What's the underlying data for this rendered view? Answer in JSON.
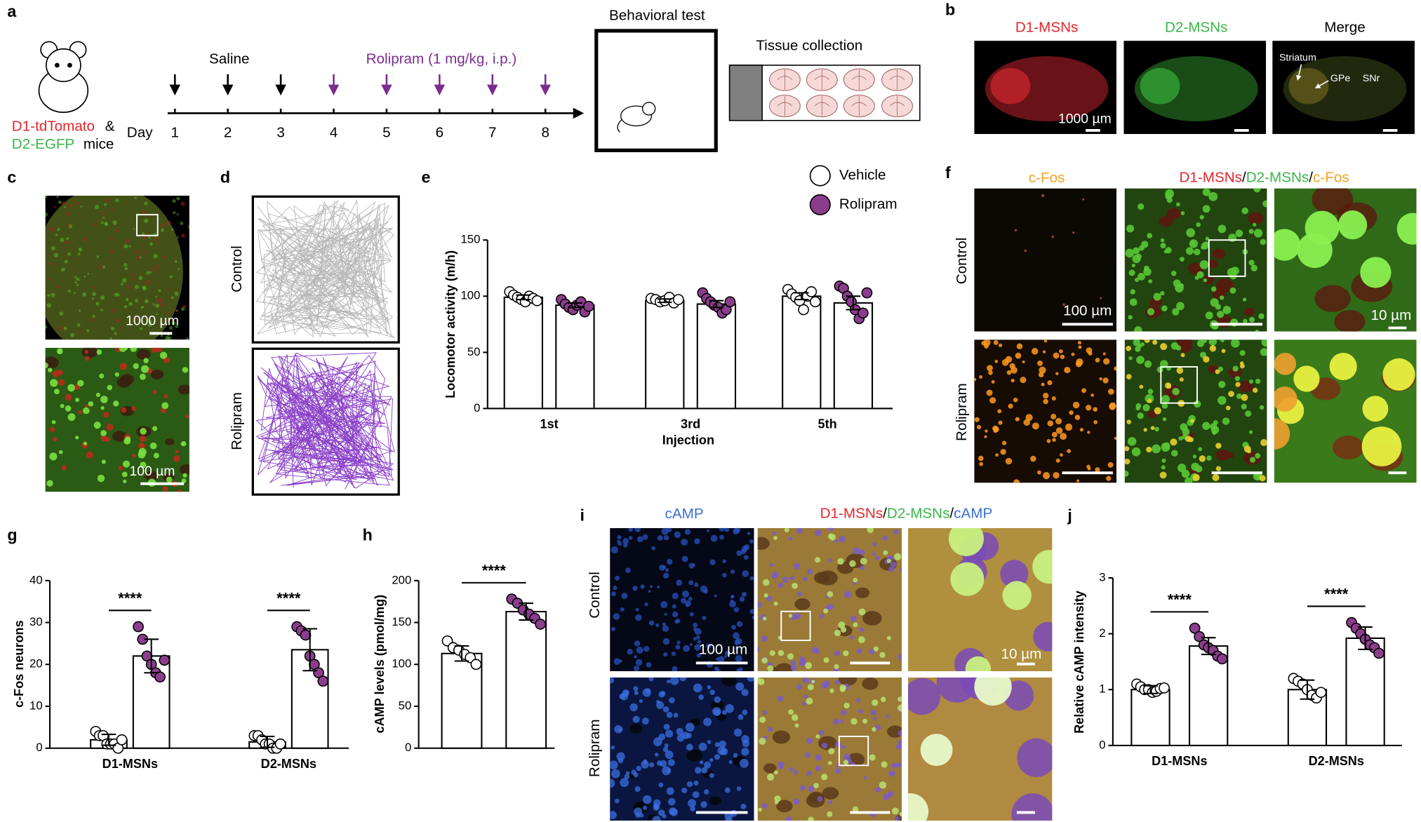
{
  "figure": {
    "panel_labels": [
      "a",
      "b",
      "c",
      "d",
      "e",
      "f",
      "g",
      "h",
      "i",
      "j"
    ],
    "a": {
      "strain_1": "D1-tdTomato",
      "amp": "&",
      "strain_2": "D2-EGFP",
      "mice": "mice",
      "day_label": "Day",
      "days": [
        1,
        2,
        3,
        4,
        5,
        6,
        7,
        8
      ],
      "saline": "Saline",
      "rolipram": "Rolipram (1 mg/kg, i.p.)",
      "behavioral_test": "Behavioral test",
      "tissue_collection": "Tissue collection"
    },
    "b": {
      "titles": [
        "D1-MSNs",
        "D2-MSNs",
        "Merge"
      ],
      "scale": "1000 µm",
      "regions": [
        "Striatum",
        "GPe",
        "SNr"
      ]
    },
    "c": {
      "scale_top": "1000 µm",
      "scale_bottom": "100 µm"
    },
    "d": {
      "rows": [
        "Control",
        "Rolipram"
      ]
    },
    "f": {
      "title_1": "c-Fos",
      "title_2": [
        "D1-MSNs",
        "/",
        "D2-MSNs",
        "/",
        "c-Fos"
      ],
      "rows": [
        "Control",
        "Rolipram"
      ],
      "scale_1": "100 µm",
      "scale_2": "10 µm"
    },
    "i": {
      "title_1": "cAMP",
      "title_2": [
        "D1-MSNs",
        "/",
        "D2-MSNs",
        "/",
        "cAMP"
      ],
      "rows": [
        "Control",
        "Rolipram"
      ],
      "scale_1": "100 µm",
      "scale_2": "10 µm"
    }
  },
  "chart_data": [
    {
      "type": "bar",
      "ylabel": "Locomotor activity (m/h)",
      "xlabel": "Injection",
      "categories": [
        "1st",
        "3rd",
        "5th"
      ],
      "ylim": [
        0,
        150
      ],
      "yticks": [
        0,
        50,
        100,
        150
      ],
      "legend": "upper right",
      "bar_color": "#ffffff",
      "series": [
        {
          "name": "Vehicle",
          "color": "#ffffff",
          "values": [
            99,
            96,
            100
          ],
          "errors": [
            2,
            1.5,
            3
          ],
          "points": [
            [
              104,
              101,
              99,
              97,
              95,
              100,
              98,
              96
            ],
            [
              98,
              97,
              95,
              96,
              99,
              94,
              97
            ],
            [
              106,
              102,
              99,
              96,
              88,
              100,
              104,
              95
            ]
          ]
        },
        {
          "name": "Rolipram",
          "color": "#8b3d8c",
          "values": [
            92,
            93,
            94
          ],
          "errors": [
            2,
            3,
            6
          ],
          "points": [
            [
              97,
              93,
              90,
              88,
              92,
              95,
              86,
              91
            ],
            [
              103,
              98,
              95,
              92,
              90,
              85,
              88,
              95
            ],
            [
              109,
              107,
              100,
              95,
              88,
              80,
              85,
              103
            ]
          ]
        }
      ]
    },
    {
      "type": "bar",
      "ylabel": "c-Fos neurons",
      "categories": [
        "D1-MSNs",
        "D2-MSNs"
      ],
      "ylim": [
        0,
        40
      ],
      "yticks": [
        0,
        10,
        20,
        30,
        40
      ],
      "bar_color": "#ffffff",
      "annotations": [
        "****",
        "****"
      ],
      "series": [
        {
          "color": "#ffffff",
          "values": [
            2,
            1.5
          ],
          "errors": [
            1.3,
            1.3
          ],
          "points": [
            [
              4,
              3,
              3,
              1,
              1,
              1,
              0,
              2
            ],
            [
              3,
              3,
              2,
              1,
              1,
              0,
              0,
              1
            ]
          ]
        },
        {
          "color": "#8b3d8c",
          "values": [
            22,
            23.5
          ],
          "errors": [
            4,
            5
          ],
          "points": [
            [
              29,
              26,
              22,
              20,
              18,
              17,
              21
            ],
            [
              29,
              28,
              27,
              22,
              20,
              18,
              16
            ]
          ]
        }
      ]
    },
    {
      "type": "bar",
      "ylabel": "cAMP levels (pmol/mg)",
      "categories": [
        null
      ],
      "ylim": [
        0,
        200
      ],
      "yticks": [
        0,
        50,
        100,
        150,
        200
      ],
      "bar_color": "#ffffff",
      "annotations": [
        "****"
      ],
      "series": [
        {
          "color": "#ffffff",
          "values": [
            113
          ],
          "errors": [
            9
          ],
          "points": [
            [
              128,
              120,
              117,
              112,
              108,
              100
            ]
          ]
        },
        {
          "color": "#8b3d8c",
          "values": [
            163
          ],
          "errors": [
            10
          ],
          "points": [
            [
              178,
              173,
              165,
              160,
              155,
              148
            ]
          ]
        }
      ]
    },
    {
      "type": "bar",
      "ylabel": "Relative cAMP  intensity",
      "categories": [
        "D1-MSNs",
        "D2-MSNs"
      ],
      "ylim": [
        0,
        3
      ],
      "yticks": [
        0,
        1,
        2,
        3
      ],
      "bar_color": "#ffffff",
      "annotations": [
        "****",
        "****"
      ],
      "series": [
        {
          "color": "#ffffff",
          "values": [
            1.0,
            1.0
          ],
          "errors": [
            0.07,
            0.17
          ],
          "points": [
            [
              1.1,
              1.05,
              1.0,
              1.0,
              0.95,
              0.97,
              1.02,
              1.03
            ],
            [
              1.2,
              1.15,
              1.1,
              1.0,
              0.9,
              0.85,
              0.95
            ]
          ]
        },
        {
          "color": "#8b3d8c",
          "values": [
            1.78,
            1.92
          ],
          "errors": [
            0.15,
            0.2
          ],
          "points": [
            [
              2.1,
              1.95,
              1.8,
              1.75,
              1.7,
              1.6,
              1.55
            ],
            [
              2.2,
              2.1,
              2.0,
              1.9,
              1.8,
              1.75,
              1.65
            ]
          ]
        }
      ]
    }
  ]
}
